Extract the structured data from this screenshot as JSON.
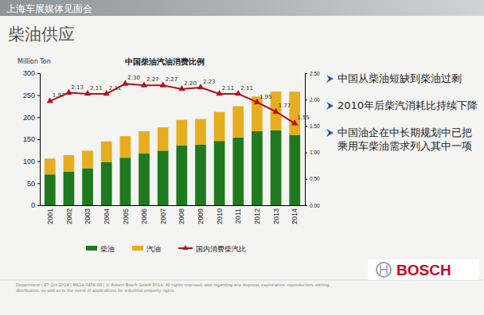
{
  "page": {
    "header": "上海车展媒体见面会",
    "title": "柴油供应",
    "bullets": [
      "中国从柴油短缺到柴油过剩",
      "2010年后柴汽消耗比持续下降",
      "中国油企在中长期规划中已把乘用车柴油需求列入其中一项"
    ],
    "footer": "Department | 27-Oct-2014 | MK14-0456-08 | © Robert Bosch GmbH 2014. All rights reserved, also regarding any disposal, exploitation, reproduction, editing, distribution, as well as in the event of applications for industrial property rights.",
    "logo": "BOSCH"
  },
  "chart_data": {
    "type": "bar",
    "stacked": true,
    "title": "中国柴油汽油消费比例",
    "y_label": "Million Ton",
    "categories": [
      "2001",
      "2002",
      "2003",
      "2004",
      "2005",
      "2006",
      "2007",
      "2008",
      "2009",
      "2010",
      "2011",
      "2012",
      "2013",
      "2014"
    ],
    "series": [
      {
        "name": "柴油",
        "color": "#1f7a1f",
        "values": [
          70,
          76,
          84,
          98,
          108,
          118,
          124,
          136,
          138,
          146,
          154,
          168,
          170,
          160
        ]
      },
      {
        "name": "汽油",
        "color": "#e6ad1e",
        "values": [
          36,
          38,
          40,
          47,
          49,
          50,
          53,
          58,
          58,
          66,
          71,
          79,
          88,
          98
        ]
      },
      {
        "name": "国内消费柴汽比",
        "type": "line",
        "axis": "y2",
        "color": "#b5121b",
        "marker": "triangle",
        "data_labels": true,
        "values": [
          1.97,
          2.13,
          2.11,
          2.11,
          2.3,
          2.27,
          2.27,
          2.2,
          2.23,
          2.11,
          2.11,
          1.95,
          1.77,
          1.55
        ],
        "value_labels": [
          "1.97",
          "2.13",
          "2.11",
          "2.11",
          "2.30",
          "2.27",
          "2.27",
          "2.20",
          "2.23",
          "2.11",
          "2.11",
          "1.95",
          "1.77",
          "1.55"
        ]
      }
    ],
    "ylim": [
      0,
      300
    ],
    "yticks": [
      0,
      50,
      100,
      150,
      200,
      250,
      300
    ],
    "y2lim": [
      0,
      2.5
    ],
    "y2ticks": [
      {
        "value": 0,
        "label": "0.00"
      },
      {
        "value": 0.5,
        "label": "0.50"
      },
      {
        "value": 1,
        "label": "1.00"
      },
      {
        "value": 1.5,
        "label": "1.50"
      },
      {
        "value": 2,
        "label": "2.00"
      },
      {
        "value": 2.5,
        "label": "2.50"
      }
    ],
    "legend": "bottom"
  }
}
